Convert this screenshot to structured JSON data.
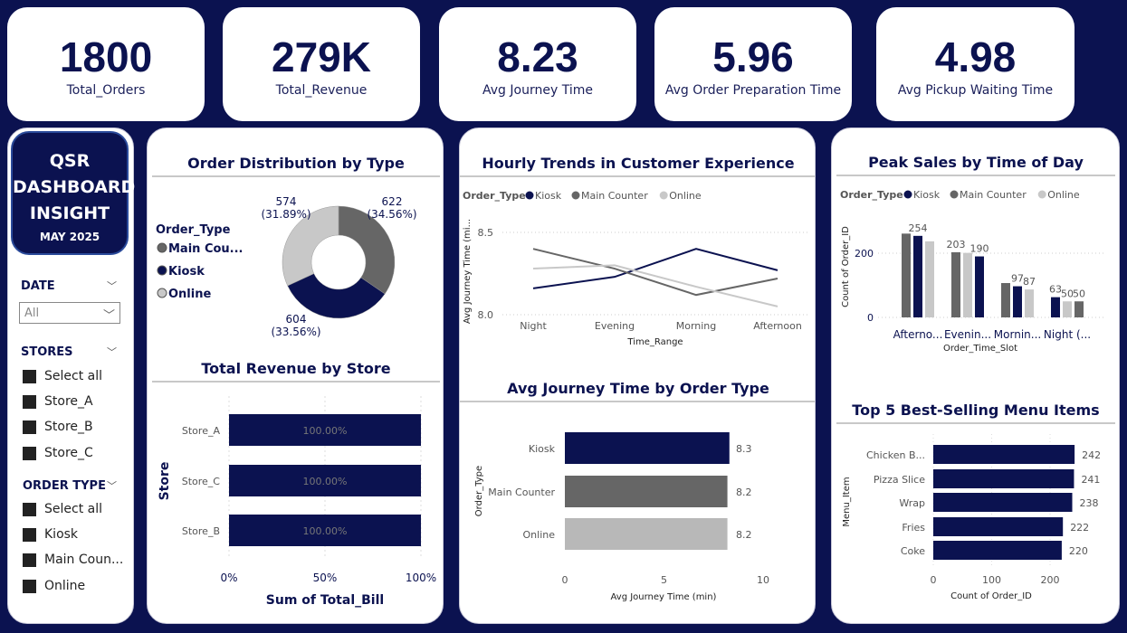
{
  "kpis": [
    {
      "value": "1800",
      "label": "Total_Orders"
    },
    {
      "value": "279K",
      "label": "Total_Revenue"
    },
    {
      "value": "8.23",
      "label": "Avg Journey Time"
    },
    {
      "value": "5.96",
      "label": "Avg Order Preparation Time"
    },
    {
      "value": "4.98",
      "label": "Avg Pickup Waiting Time"
    }
  ],
  "logo": {
    "title_lines": [
      "QSR",
      "DASHBOARD",
      "INSIGHT"
    ],
    "subtitle": "MAY 2025"
  },
  "filters": {
    "date": {
      "label": "DATE",
      "value": "All"
    },
    "stores": {
      "label": "STORES",
      "items": [
        "Select all",
        "Store_A",
        "Store_B",
        "Store_C"
      ]
    },
    "order_type": {
      "label": "ORDER TYPE",
      "items": [
        "Select all",
        "Kiosk",
        "Main Coun...",
        "Online"
      ]
    }
  },
  "colors": {
    "kiosk": "#0b1250",
    "main_counter": "#666666",
    "online": "#c8c8c8",
    "background": "#0b1250"
  },
  "chart_data": [
    {
      "id": "donut",
      "type": "pie",
      "title": "Order Distribution by Type",
      "legend_title": "Order_Type",
      "legend_labels": [
        "Main Cou...",
        "Kiosk",
        "Online"
      ],
      "categories": [
        "Main Counter",
        "Kiosk",
        "Online"
      ],
      "values": [
        622,
        604,
        574
      ],
      "labels": [
        "622",
        "604",
        "574"
      ],
      "percent_labels": [
        "(34.56%)",
        "(33.56%)",
        "(31.89%)"
      ]
    },
    {
      "id": "revenue",
      "type": "bar",
      "title": "Total Revenue by Store",
      "orientation": "horizontal",
      "stacked_percent": true,
      "categories": [
        "Store_A",
        "Store_C",
        "Store_B"
      ],
      "values": [
        100,
        100,
        100
      ],
      "data_labels": [
        "100.00%",
        "100.00%",
        "100.00%"
      ],
      "xlabel": "Sum of Total_Bill",
      "ylabel": "Store",
      "xticks": [
        "0%",
        "50%",
        "100%"
      ],
      "xlim": [
        0,
        100
      ]
    },
    {
      "id": "hourly",
      "type": "line",
      "title": "Hourly Trends in Customer Experience",
      "legend_title": "Order_Type",
      "categories": [
        "Night",
        "Evening",
        "Morning",
        "Afternoon"
      ],
      "series": [
        {
          "name": "Kiosk",
          "values": [
            8.16,
            8.23,
            8.4,
            8.27
          ]
        },
        {
          "name": "Main Counter",
          "values": [
            8.4,
            8.28,
            8.12,
            8.22
          ]
        },
        {
          "name": "Online",
          "values": [
            8.28,
            8.3,
            8.17,
            8.05
          ]
        }
      ],
      "xlabel": "Time_Range",
      "ylabel": "Avg Journey Time (mi...",
      "ylim": [
        8.0,
        8.5
      ],
      "yticks": [
        "8.0",
        "8.5"
      ],
      "grid": true
    },
    {
      "id": "journey",
      "type": "bar",
      "title": "Avg Journey Time by Order Type",
      "orientation": "horizontal",
      "categories": [
        "Kiosk",
        "Main Counter",
        "Online"
      ],
      "values": [
        8.3,
        8.2,
        8.2
      ],
      "data_labels": [
        "8.3",
        "8.2",
        "8.2"
      ],
      "xlabel": "Avg Journey Time (min)",
      "ylabel": "Order_Type",
      "xlim": [
        0,
        10
      ],
      "xticks": [
        "0",
        "5",
        "10"
      ]
    },
    {
      "id": "peak",
      "type": "bar",
      "title": "Peak Sales by Time of Day",
      "legend_title": "Order_Type",
      "legend_labels": [
        "Kiosk",
        "Main Counter",
        "Online"
      ],
      "categories": [
        "Afterno...",
        "Evenin...",
        "Mornin...",
        "Night (..."
      ],
      "groups": [
        [
          {
            "type": "Main Counter",
            "value": 261,
            "label": ""
          },
          {
            "type": "Kiosk",
            "value": 254,
            "label": "254"
          },
          {
            "type": "Online",
            "value": 237,
            "label": ""
          }
        ],
        [
          {
            "type": "Main Counter",
            "value": 203,
            "label": "203"
          },
          {
            "type": "Online",
            "value": 201,
            "label": ""
          },
          {
            "type": "Kiosk",
            "value": 190,
            "label": "190"
          }
        ],
        [
          {
            "type": "Main Counter",
            "value": 107,
            "label": ""
          },
          {
            "type": "Kiosk",
            "value": 97,
            "label": "97"
          },
          {
            "type": "Online",
            "value": 87,
            "label": "87"
          }
        ],
        [
          {
            "type": "Kiosk",
            "value": 63,
            "label": "63"
          },
          {
            "type": "Online",
            "value": 50,
            "label": "50"
          },
          {
            "type": "Main Counter",
            "value": 50,
            "label": "50"
          }
        ]
      ],
      "xlabel": "Order_Time_Slot",
      "ylabel": "Count of Order_ID",
      "ylim": [
        0,
        270
      ],
      "yticks": [
        "0",
        "200"
      ],
      "grid": true
    },
    {
      "id": "top5",
      "type": "bar",
      "title": "Top 5 Best-Selling Menu Items",
      "orientation": "horizontal",
      "categories": [
        "Chicken B...",
        "Pizza Slice",
        "Wrap",
        "Fries",
        "Coke"
      ],
      "values": [
        242,
        241,
        238,
        222,
        220
      ],
      "xlabel": "Count of Order_ID",
      "ylabel": "Menu_Item",
      "xlim": [
        0,
        250
      ],
      "xticks": [
        "0",
        "100",
        "200"
      ]
    }
  ]
}
